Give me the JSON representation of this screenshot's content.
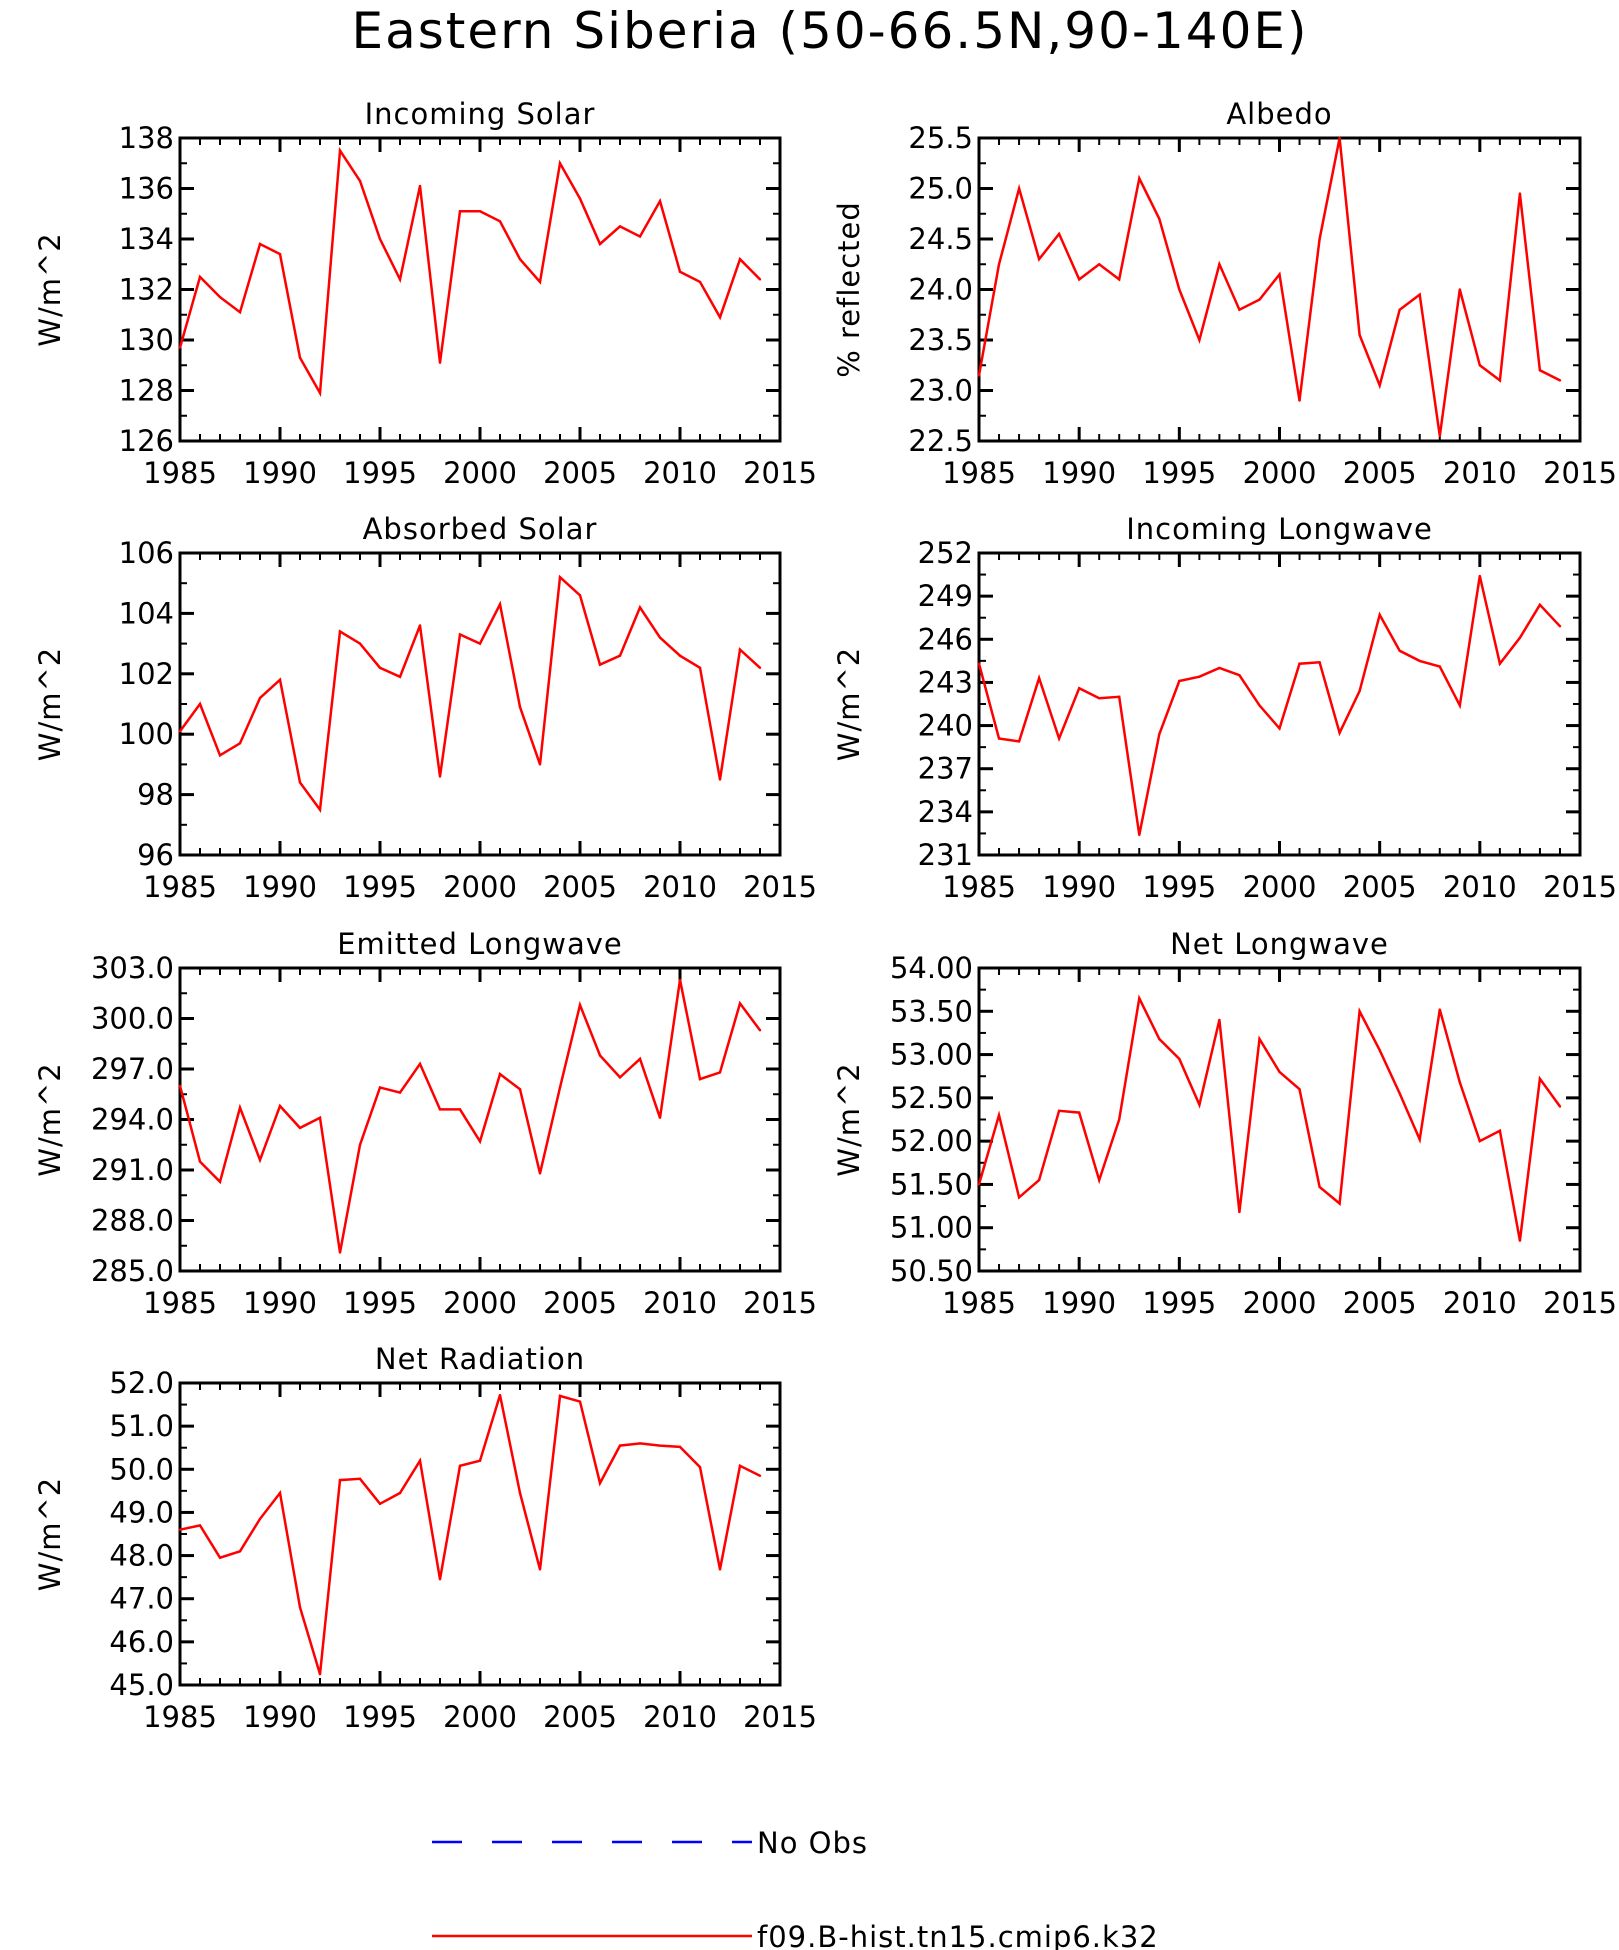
{
  "title": "Eastern Siberia (50-66.5N,90-140E)",
  "legend": {
    "items": [
      {
        "label": "No Obs",
        "color": "#0000ff",
        "dashed": true
      },
      {
        "label": "f09.B-hist.tn15.cmip6.k32",
        "color": "#ff0000",
        "dashed": false
      }
    ]
  },
  "series_color": "#ff0000",
  "chart_data": [
    {
      "type": "line",
      "title": "Incoming Solar",
      "ylabel": "W/m^2",
      "xlim": [
        1985,
        2015
      ],
      "ylim": [
        126,
        138
      ],
      "xticks": [
        "1985",
        "1990",
        "1995",
        "2000",
        "2005",
        "2010",
        "2015"
      ],
      "yticks": [
        "126",
        "128",
        "130",
        "132",
        "134",
        "136",
        "138"
      ],
      "x": [
        1985,
        1986,
        1987,
        1988,
        1989,
        1990,
        1991,
        1992,
        1993,
        1994,
        1995,
        1996,
        1997,
        1998,
        1999,
        2000,
        2001,
        2002,
        2003,
        2004,
        2005,
        2006,
        2007,
        2008,
        2009,
        2010,
        2011,
        2012,
        2013,
        2014
      ],
      "values": [
        129.7,
        132.5,
        131.7,
        131.1,
        133.8,
        133.4,
        129.3,
        127.9,
        137.5,
        136.3,
        134.0,
        132.4,
        136.1,
        129.1,
        135.1,
        135.1,
        134.7,
        133.2,
        132.3,
        137.0,
        135.6,
        133.8,
        134.5,
        134.1,
        135.5,
        132.7,
        132.3,
        130.9,
        133.2,
        132.4
      ],
      "series_name": "f09.B-hist.tn15.cmip6.k32"
    },
    {
      "type": "line",
      "title": "Albedo",
      "ylabel": "% reflected",
      "xlim": [
        1985,
        2015
      ],
      "ylim": [
        22.5,
        25.5
      ],
      "xticks": [
        "1985",
        "1990",
        "1995",
        "2000",
        "2005",
        "2010",
        "2015"
      ],
      "yticks": [
        "22.5",
        "23.0",
        "23.5",
        "24.0",
        "24.5",
        "25.0",
        "25.5"
      ],
      "x": [
        1985,
        1986,
        1987,
        1988,
        1989,
        1990,
        1991,
        1992,
        1993,
        1994,
        1995,
        1996,
        1997,
        1998,
        1999,
        2000,
        2001,
        2002,
        2003,
        2004,
        2005,
        2006,
        2007,
        2008,
        2009,
        2010,
        2011,
        2012,
        2013,
        2014
      ],
      "values": [
        23.15,
        24.25,
        25.0,
        24.3,
        24.55,
        24.1,
        24.25,
        24.1,
        25.1,
        24.7,
        24.0,
        23.5,
        24.25,
        23.8,
        23.9,
        24.15,
        22.9,
        24.5,
        25.5,
        23.55,
        23.05,
        23.8,
        23.95,
        22.55,
        24.0,
        23.25,
        23.1,
        24.95,
        23.2,
        23.1
      ],
      "series_name": "f09.B-hist.tn15.cmip6.k32"
    },
    {
      "type": "line",
      "title": "Absorbed Solar",
      "ylabel": "W/m^2",
      "xlim": [
        1985,
        2015
      ],
      "ylim": [
        96,
        106
      ],
      "xticks": [
        "1985",
        "1990",
        "1995",
        "2000",
        "2005",
        "2010",
        "2015"
      ],
      "yticks": [
        "96",
        "98",
        "100",
        "102",
        "104",
        "106"
      ],
      "x": [
        1985,
        1986,
        1987,
        1988,
        1989,
        1990,
        1991,
        1992,
        1993,
        1994,
        1995,
        1996,
        1997,
        1998,
        1999,
        2000,
        2001,
        2002,
        2003,
        2004,
        2005,
        2006,
        2007,
        2008,
        2009,
        2010,
        2011,
        2012,
        2013,
        2014
      ],
      "values": [
        100.1,
        101.0,
        99.3,
        99.7,
        101.2,
        101.8,
        98.4,
        97.5,
        103.4,
        103.0,
        102.2,
        101.9,
        103.6,
        98.6,
        103.3,
        103.0,
        104.3,
        100.9,
        99.0,
        105.2,
        104.6,
        102.3,
        102.6,
        104.2,
        103.2,
        102.6,
        102.2,
        98.5,
        102.8,
        102.2
      ],
      "series_name": "f09.B-hist.tn15.cmip6.k32"
    },
    {
      "type": "line",
      "title": "Incoming Longwave",
      "ylabel": "W/m^2",
      "xlim": [
        1985,
        2015
      ],
      "ylim": [
        231,
        252
      ],
      "xticks": [
        "1985",
        "1990",
        "1995",
        "2000",
        "2005",
        "2010",
        "2015"
      ],
      "yticks": [
        "231",
        "234",
        "237",
        "240",
        "243",
        "246",
        "249",
        "252"
      ],
      "x": [
        1985,
        1986,
        1987,
        1988,
        1989,
        1990,
        1991,
        1992,
        1993,
        1994,
        1995,
        1996,
        1997,
        1998,
        1999,
        2000,
        2001,
        2002,
        2003,
        2004,
        2005,
        2006,
        2007,
        2008,
        2009,
        2010,
        2011,
        2012,
        2013,
        2014
      ],
      "values": [
        244.3,
        239.1,
        238.9,
        243.3,
        239.1,
        242.6,
        241.9,
        242.0,
        232.4,
        239.4,
        243.1,
        243.4,
        244.0,
        243.5,
        241.4,
        239.8,
        244.3,
        244.4,
        239.5,
        242.4,
        247.7,
        245.2,
        244.5,
        244.1,
        241.4,
        250.4,
        244.3,
        246.1,
        248.4,
        246.9
      ],
      "series_name": "f09.B-hist.tn15.cmip6.k32"
    },
    {
      "type": "line",
      "title": "Emitted Longwave",
      "ylabel": "W/m^2",
      "xlim": [
        1985,
        2015
      ],
      "ylim": [
        285,
        303
      ],
      "xticks": [
        "1985",
        "1990",
        "1995",
        "2000",
        "2005",
        "2010",
        "2015"
      ],
      "yticks": [
        "285.0",
        "288.0",
        "291.0",
        "294.0",
        "297.0",
        "300.0",
        "303.0"
      ],
      "x": [
        1985,
        1986,
        1987,
        1988,
        1989,
        1990,
        1991,
        1992,
        1993,
        1994,
        1995,
        1996,
        1997,
        1998,
        1999,
        2000,
        2001,
        2002,
        2003,
        2004,
        2005,
        2006,
        2007,
        2008,
        2009,
        2010,
        2011,
        2012,
        2013,
        2014
      ],
      "values": [
        296.0,
        291.5,
        290.3,
        294.7,
        291.6,
        294.8,
        293.5,
        294.1,
        286.1,
        292.5,
        295.9,
        295.6,
        297.3,
        294.6,
        294.6,
        292.7,
        296.7,
        295.8,
        290.8,
        295.9,
        300.8,
        297.8,
        296.5,
        297.6,
        294.1,
        302.3,
        296.4,
        296.8,
        300.9,
        299.3
      ],
      "series_name": "f09.B-hist.tn15.cmip6.k32"
    },
    {
      "type": "line",
      "title": "Net Longwave",
      "ylabel": "W/m^2",
      "xlim": [
        1985,
        2015
      ],
      "ylim": [
        50.5,
        54.0
      ],
      "xticks": [
        "1985",
        "1990",
        "1995",
        "2000",
        "2005",
        "2010",
        "2015"
      ],
      "yticks": [
        "50.50",
        "51.00",
        "51.50",
        "52.00",
        "52.50",
        "53.00",
        "53.50",
        "54.00"
      ],
      "x": [
        1985,
        1986,
        1987,
        1988,
        1989,
        1990,
        1991,
        1992,
        1993,
        1994,
        1995,
        1996,
        1997,
        1998,
        1999,
        2000,
        2001,
        2002,
        2003,
        2004,
        2005,
        2006,
        2007,
        2008,
        2009,
        2010,
        2011,
        2012,
        2013,
        2014
      ],
      "values": [
        51.5,
        52.3,
        51.35,
        51.55,
        52.35,
        52.33,
        51.55,
        52.25,
        53.65,
        53.18,
        52.95,
        52.42,
        53.4,
        51.18,
        53.18,
        52.8,
        52.6,
        51.47,
        51.28,
        53.5,
        53.05,
        52.55,
        52.02,
        53.52,
        52.68,
        52.0,
        52.12,
        50.85,
        52.72,
        52.4
      ],
      "series_name": "f09.B-hist.tn15.cmip6.k32"
    },
    {
      "type": "line",
      "title": "Net Radiation",
      "ylabel": "W/m^2",
      "xlim": [
        1985,
        2015
      ],
      "ylim": [
        45.0,
        52.0
      ],
      "xticks": [
        "1985",
        "1990",
        "1995",
        "2000",
        "2005",
        "2010",
        "2015"
      ],
      "yticks": [
        "45.0",
        "46.0",
        "47.0",
        "48.0",
        "49.0",
        "50.0",
        "51.0",
        "52.0"
      ],
      "x": [
        1985,
        1986,
        1987,
        1988,
        1989,
        1990,
        1991,
        1992,
        1993,
        1994,
        1995,
        1996,
        1997,
        1998,
        1999,
        2000,
        2001,
        2002,
        2003,
        2004,
        2005,
        2006,
        2007,
        2008,
        2009,
        2010,
        2011,
        2012,
        2013,
        2014
      ],
      "values": [
        48.6,
        48.7,
        47.95,
        48.1,
        48.85,
        49.45,
        46.8,
        45.25,
        49.75,
        49.78,
        49.2,
        49.45,
        50.2,
        47.45,
        50.08,
        50.2,
        51.72,
        49.45,
        47.68,
        51.7,
        51.57,
        49.68,
        50.55,
        50.6,
        50.55,
        50.52,
        50.05,
        47.68,
        50.08,
        49.85
      ],
      "series_name": "f09.B-hist.tn15.cmip6.k32"
    }
  ]
}
